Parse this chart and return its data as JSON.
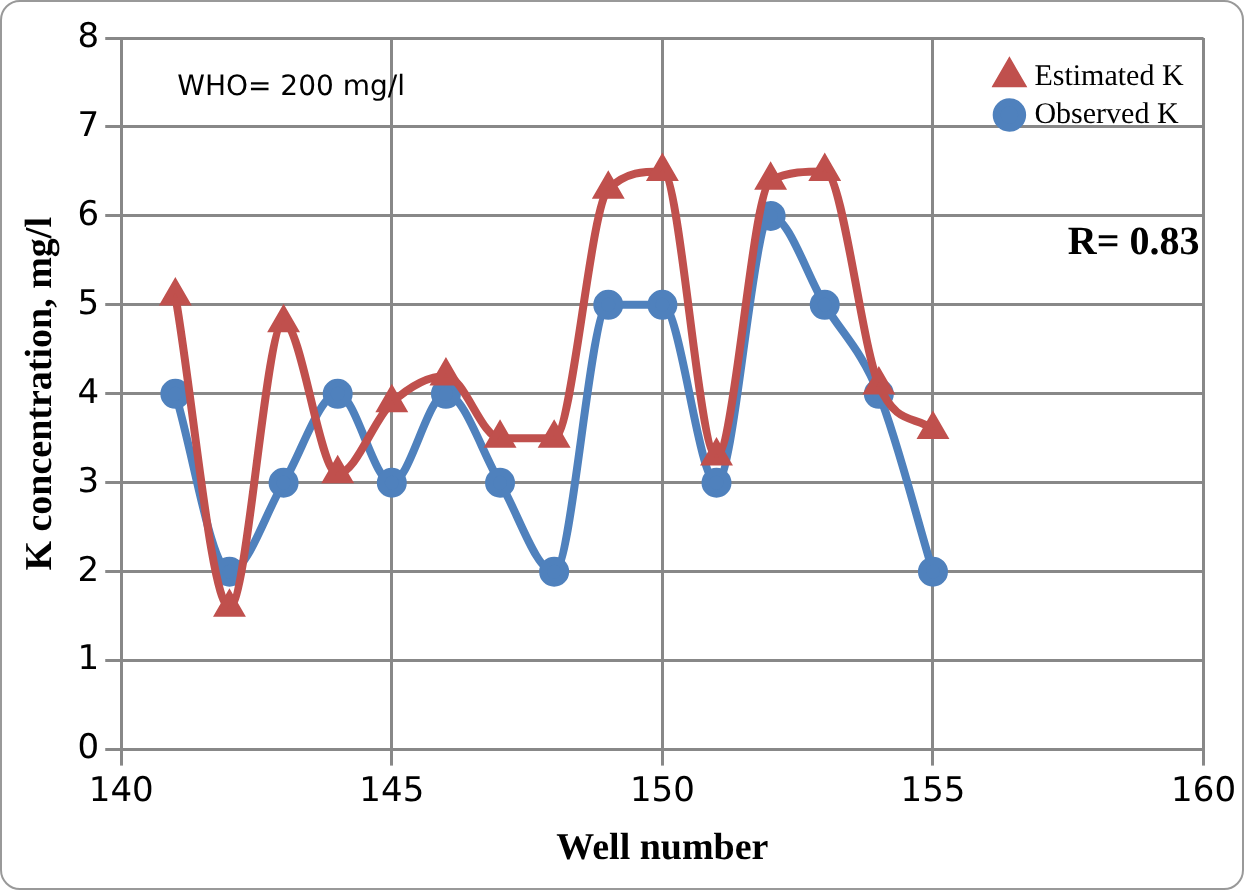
{
  "chart_data": {
    "type": "line",
    "xlabel": "Well number",
    "ylabel": "K concentration, mg/l",
    "x": [
      141,
      142,
      143,
      144,
      145,
      146,
      147,
      148,
      149,
      150,
      151,
      152,
      153,
      154,
      155
    ],
    "series": [
      {
        "name": "Observed K",
        "color": "#4f81bd",
        "marker": "circle",
        "values": [
          4,
          2,
          3,
          4,
          3,
          4,
          3,
          2,
          5,
          5,
          3,
          6,
          5,
          4,
          2
        ]
      },
      {
        "name": "Estimated K",
        "color": "#c0504d",
        "marker": "triangle",
        "values": [
          5.1,
          1.6,
          4.8,
          3.1,
          3.9,
          4.2,
          3.5,
          3.5,
          6.3,
          6.5,
          3.3,
          6.4,
          6.5,
          4.1,
          3.6
        ]
      }
    ],
    "xlim": [
      140,
      160
    ],
    "xticks": [
      140,
      145,
      150,
      155,
      160
    ],
    "ylim": [
      0,
      8
    ],
    "yticks": [
      0,
      1,
      2,
      3,
      4,
      5,
      6,
      7,
      8
    ],
    "grid": true,
    "legend": "top right",
    "annotations": [
      "WHO= 200 mg/l",
      "R= 0.83"
    ]
  }
}
